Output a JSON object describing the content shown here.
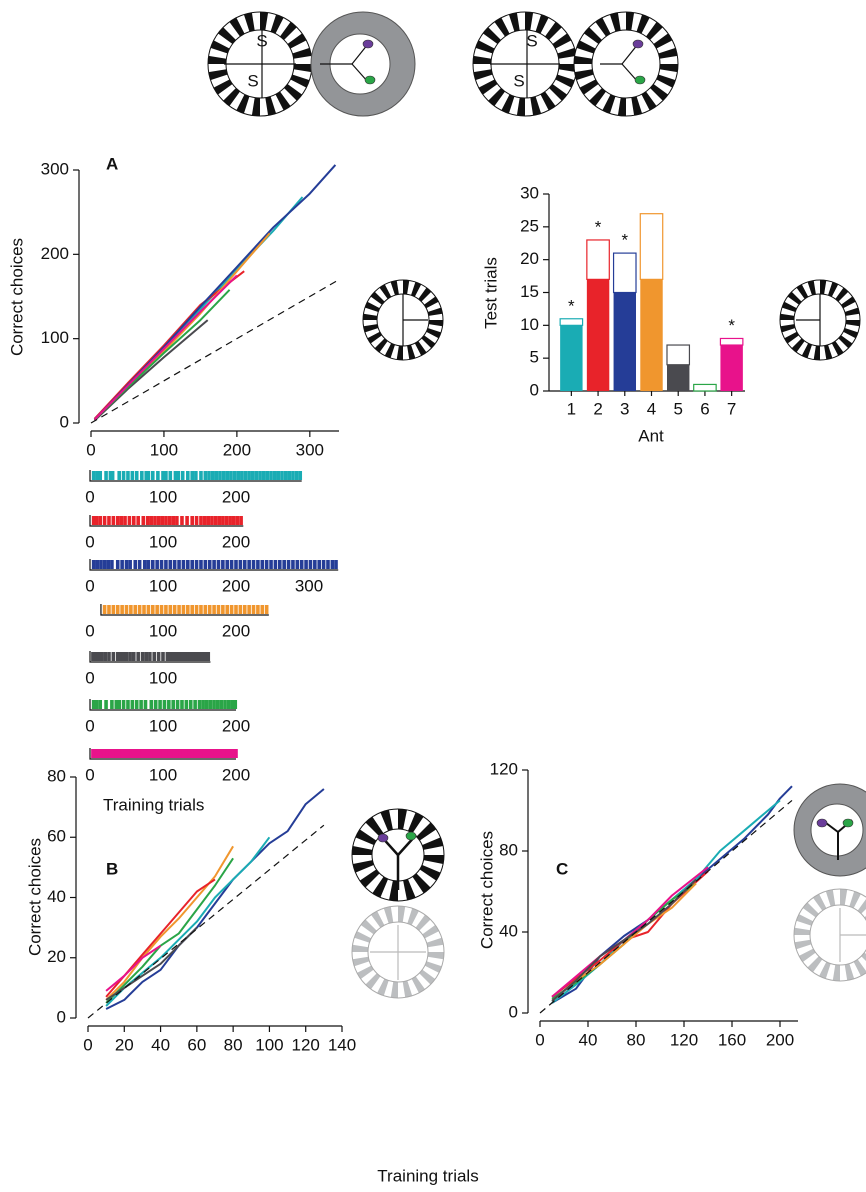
{
  "icon_labels": [
    "S",
    "S",
    "S",
    "S"
  ],
  "chart_data": [
    {
      "type": "line",
      "label": "A",
      "ylabel": "Correct choices",
      "xlim": [
        0,
        340
      ],
      "ylim": [
        0,
        300
      ],
      "xticks": [
        0,
        100,
        200,
        300
      ],
      "yticks": [
        0,
        100,
        200,
        300
      ],
      "series": [
        {
          "color": "#1aacb4",
          "x": [
            5,
            50,
            100,
            150,
            200,
            250,
            290
          ],
          "values": [
            5,
            45,
            88,
            135,
            182,
            228,
            268
          ]
        },
        {
          "color": "#e8232a",
          "x": [
            5,
            50,
            100,
            150,
            210
          ],
          "values": [
            5,
            47,
            92,
            140,
            180
          ]
        },
        {
          "color": "#253d97",
          "x": [
            5,
            50,
            100,
            150,
            200,
            250,
            300,
            335
          ],
          "values": [
            4,
            45,
            90,
            138,
            185,
            232,
            272,
            306
          ]
        },
        {
          "color": "#f0962e",
          "x": [
            15,
            50,
            100,
            150,
            200,
            245
          ],
          "values": [
            12,
            42,
            85,
            130,
            180,
            225
          ]
        },
        {
          "color": "#4a4a4f",
          "x": [
            5,
            50,
            100,
            160
          ],
          "values": [
            3,
            40,
            78,
            122
          ]
        },
        {
          "color": "#2aa547",
          "x": [
            5,
            50,
            100,
            150,
            190
          ],
          "values": [
            4,
            42,
            83,
            122,
            158
          ]
        },
        {
          "color": "#e8128b",
          "x": [
            5,
            50,
            100,
            150,
            200
          ],
          "values": [
            4,
            44,
            88,
            132,
            175
          ]
        },
        {
          "color": "#111111",
          "dashed": true,
          "x": [
            0,
            340
          ],
          "values": [
            0,
            170
          ]
        }
      ]
    },
    {
      "type": "raster",
      "xlabel": "Training trials",
      "rows": [
        {
          "color": "#1aacb4",
          "xlim": [
            0,
            290
          ],
          "xticks": [
            0,
            100,
            200
          ],
          "values": [
            5,
            10,
            14,
            22,
            28,
            31,
            40,
            46,
            52,
            58,
            64,
            71,
            77,
            80,
            86,
            93,
            100,
            104,
            110,
            117,
            121,
            127,
            134,
            140,
            145,
            152,
            158,
            163,
            168,
            173,
            178,
            183,
            188,
            193,
            198,
            203,
            208,
            213,
            218,
            223,
            228,
            233,
            238,
            243,
            248,
            253,
            258,
            263,
            268,
            273,
            278,
            283,
            288
          ]
        },
        {
          "color": "#e8232a",
          "xlim": [
            0,
            210
          ],
          "xticks": [
            0,
            100,
            200
          ],
          "values": [
            5,
            9,
            14,
            20,
            26,
            32,
            38,
            43,
            48,
            54,
            60,
            66,
            73,
            79,
            84,
            89,
            94,
            99,
            104,
            109,
            114,
            119,
            126,
            133,
            140,
            146,
            152,
            157,
            162,
            167,
            172,
            177,
            182,
            187,
            192,
            197,
            202,
            207
          ]
        },
        {
          "color": "#253d97",
          "xlim": [
            0,
            340
          ],
          "xticks": [
            0,
            100,
            200,
            300
          ],
          "values": [
            5,
            10,
            15,
            20,
            25,
            30,
            38,
            44,
            50,
            55,
            62,
            68,
            75,
            80,
            86,
            92,
            98,
            104,
            110,
            116,
            122,
            128,
            134,
            140,
            146,
            152,
            158,
            164,
            170,
            176,
            182,
            188,
            194,
            200,
            206,
            212,
            218,
            224,
            230,
            236,
            242,
            248,
            254,
            260,
            266,
            272,
            278,
            284,
            290,
            296,
            302,
            308,
            314,
            320,
            326,
            332,
            337
          ]
        },
        {
          "color": "#f0962e",
          "xlim": [
            15,
            245
          ],
          "xticks": [
            0,
            100,
            200
          ],
          "values": [
            20,
            26,
            32,
            38,
            44,
            50,
            56,
            62,
            68,
            74,
            80,
            86,
            92,
            98,
            104,
            110,
            116,
            122,
            128,
            134,
            140,
            146,
            152,
            158,
            164,
            170,
            176,
            182,
            188,
            194,
            200,
            206,
            212,
            218,
            224,
            230,
            236,
            242
          ]
        },
        {
          "color": "#4a4a4f",
          "xlim": [
            0,
            165
          ],
          "xticks": [
            0,
            100
          ],
          "values": [
            4,
            8,
            12,
            16,
            21,
            26,
            32,
            38,
            42,
            46,
            50,
            55,
            60,
            66,
            72,
            77,
            82,
            88,
            94,
            100,
            106,
            110,
            114,
            118,
            122,
            126,
            130,
            134,
            138,
            142,
            146,
            150,
            154,
            158,
            162
          ]
        },
        {
          "color": "#2aa547",
          "xlim": [
            0,
            200
          ],
          "xticks": [
            0,
            100,
            200
          ],
          "values": [
            5,
            9,
            14,
            22,
            30,
            36,
            40,
            46,
            52,
            58,
            64,
            70,
            76,
            84,
            90,
            96,
            102,
            108,
            114,
            120,
            126,
            132,
            138,
            144,
            150,
            155,
            160,
            165,
            170,
            175,
            180,
            185,
            190,
            195,
            199
          ]
        },
        {
          "color": "#e8128b",
          "xlim": [
            0,
            200
          ],
          "xticks": [
            0,
            100,
            200
          ],
          "values": [
            4,
            8,
            12,
            16,
            20,
            24,
            28,
            32,
            36,
            40,
            44,
            48,
            52,
            56,
            60,
            64,
            68,
            72,
            76,
            80,
            84,
            88,
            92,
            96,
            100,
            104,
            108,
            112,
            116,
            120,
            124,
            128,
            132,
            136,
            140,
            144,
            148,
            152,
            156,
            160,
            164,
            168,
            172,
            176,
            180,
            184,
            188,
            192,
            196,
            200
          ]
        }
      ]
    },
    {
      "type": "bar",
      "ylabel": "Test trials",
      "xlabel": "Ant",
      "categories": [
        "1",
        "2",
        "3",
        "4",
        "5",
        "6",
        "7"
      ],
      "colors": [
        "#1aacb4",
        "#e8232a",
        "#253d97",
        "#f0962e",
        "#4a4a4f",
        "#2aa547",
        "#e8128b"
      ],
      "ylim": [
        0,
        30
      ],
      "yticks": [
        0,
        5,
        10,
        15,
        20,
        25,
        30
      ],
      "series": [
        {
          "style": "filled",
          "values": [
            10,
            17,
            15,
            17,
            4,
            0,
            7
          ]
        },
        {
          "style": "outline",
          "values": [
            1,
            6,
            6,
            10,
            3,
            1,
            1
          ]
        }
      ],
      "annotations": [
        {
          "category": "1",
          "text": "*"
        },
        {
          "category": "2",
          "text": "*"
        },
        {
          "category": "3",
          "text": "*"
        },
        {
          "category": "7",
          "text": "*"
        }
      ]
    },
    {
      "type": "line",
      "label": "B",
      "ylabel": "Correct choices",
      "xlabel": "Training trials",
      "xlim": [
        0,
        140
      ],
      "ylim": [
        0,
        80
      ],
      "xticks": [
        0,
        20,
        40,
        60,
        80,
        100,
        120,
        140
      ],
      "yticks": [
        0,
        20,
        40,
        60,
        80
      ],
      "series": [
        {
          "color": "#253d97",
          "x": [
            10,
            20,
            30,
            40,
            50,
            60,
            70,
            80,
            90,
            100,
            110,
            120,
            130
          ],
          "values": [
            3,
            6,
            12,
            16,
            24,
            30,
            38,
            46,
            52,
            58,
            62,
            71,
            76
          ]
        },
        {
          "color": "#1aacb4",
          "x": [
            10,
            20,
            30,
            40,
            50,
            60,
            70,
            80,
            90,
            100
          ],
          "values": [
            4,
            10,
            15,
            20,
            26,
            32,
            40,
            46,
            52,
            60
          ]
        },
        {
          "color": "#2aa547",
          "x": [
            10,
            20,
            30,
            40,
            50,
            60,
            70,
            80
          ],
          "values": [
            5,
            11,
            17,
            24,
            28,
            36,
            44,
            53
          ]
        },
        {
          "color": "#f0962e",
          "x": [
            10,
            20,
            30,
            40,
            50,
            60,
            70,
            80
          ],
          "values": [
            6,
            12,
            20,
            27,
            33,
            40,
            47,
            57
          ]
        },
        {
          "color": "#e8232a",
          "x": [
            10,
            20,
            30,
            40,
            50,
            60,
            70
          ],
          "values": [
            7,
            14,
            21,
            28,
            35,
            42,
            46
          ]
        },
        {
          "color": "#e8128b",
          "x": [
            10,
            20,
            30,
            40
          ],
          "values": [
            9,
            14,
            20,
            24
          ]
        },
        {
          "color": "#4a4a4f",
          "x": [
            10,
            20,
            30,
            40,
            50,
            60
          ],
          "values": [
            6,
            10,
            14,
            18,
            24,
            30
          ]
        },
        {
          "color": "#111111",
          "dashed": true,
          "x": [
            0,
            130
          ],
          "values": [
            0,
            64
          ]
        }
      ]
    },
    {
      "type": "line",
      "label": "C",
      "ylabel": "Correct choices",
      "xlim": [
        0,
        215
      ],
      "ylim": [
        0,
        120
      ],
      "xticks": [
        0,
        40,
        80,
        120,
        160,
        200
      ],
      "yticks": [
        0,
        40,
        80,
        120
      ],
      "series": [
        {
          "color": "#253d97",
          "x": [
            10,
            30,
            50,
            70,
            90,
            110,
            130,
            150,
            170,
            190,
            200,
            210
          ],
          "values": [
            5,
            12,
            28,
            38,
            46,
            56,
            66,
            76,
            86,
            98,
            106,
            112
          ]
        },
        {
          "color": "#1aacb4",
          "x": [
            10,
            30,
            50,
            70,
            90,
            110,
            130,
            150,
            170,
            190,
            200
          ],
          "values": [
            5,
            14,
            24,
            36,
            46,
            56,
            66,
            80,
            90,
            100,
            105
          ]
        },
        {
          "color": "#e8232a",
          "x": [
            10,
            30,
            50,
            70,
            90,
            110,
            140
          ],
          "values": [
            8,
            17,
            26,
            36,
            40,
            54,
            70
          ]
        },
        {
          "color": "#2aa547",
          "x": [
            10,
            30,
            50,
            70,
            90,
            110,
            130
          ],
          "values": [
            7,
            15,
            24,
            34,
            46,
            56,
            64
          ]
        },
        {
          "color": "#f0962e",
          "x": [
            10,
            30,
            50,
            70,
            90,
            110,
            130
          ],
          "values": [
            6,
            16,
            24,
            34,
            44,
            52,
            64
          ]
        },
        {
          "color": "#e8128b",
          "x": [
            10,
            30,
            50,
            70,
            90,
            110,
            140
          ],
          "values": [
            8,
            18,
            28,
            36,
            46,
            58,
            72
          ]
        },
        {
          "color": "#4a4a4f",
          "x": [
            10,
            30,
            50,
            70,
            90,
            110,
            130
          ],
          "values": [
            6,
            16,
            28,
            36,
            44,
            54,
            66
          ]
        },
        {
          "color": "#111111",
          "dashed": true,
          "x": [
            0,
            210
          ],
          "values": [
            0,
            105
          ]
        }
      ]
    }
  ]
}
